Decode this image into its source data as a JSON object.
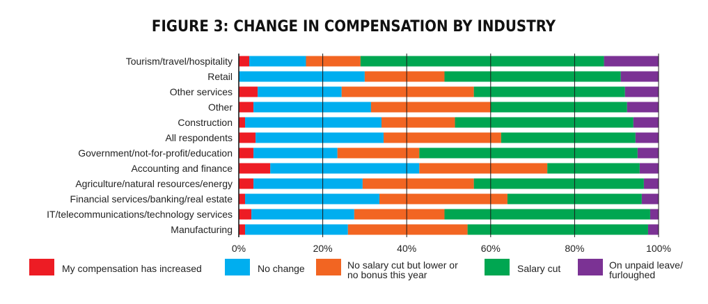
{
  "chart_data": {
    "type": "bar",
    "orientation": "horizontal",
    "stacked": true,
    "title": "FIGURE 3: CHANGE IN COMPENSATION BY INDUSTRY",
    "xlim": [
      0,
      100
    ],
    "x_ticks": [
      "0%",
      "20%",
      "40%",
      "60%",
      "80%",
      "100%"
    ],
    "grid": "vertical",
    "legend_position": "bottom",
    "categories": [
      "Tourism/travel/hospitality",
      "Retail",
      "Other services",
      "Other",
      "Construction",
      "All respondents",
      "Government/not-for-profit/education",
      "Accounting and finance",
      "Agriculture/natural resources/energy",
      "Financial services/banking/real estate",
      "IT/telecommunications/technology services",
      "Manufacturing"
    ],
    "series": [
      {
        "name": "My compensation has increased",
        "color": "#ed1c24",
        "values": [
          2.5,
          0,
          4.5,
          3.5,
          1.5,
          4,
          3.5,
          7.5,
          3.5,
          1.5,
          3,
          1.5
        ]
      },
      {
        "name": "No change",
        "color": "#00aeef",
        "values": [
          13.5,
          30,
          20,
          28,
          32.5,
          30.5,
          20,
          35.5,
          26,
          32,
          24.5,
          24.5
        ]
      },
      {
        "name": "No salary cut but lower or no bonus this year",
        "color": "#f26522",
        "values": [
          13,
          19,
          31.5,
          28.5,
          17.5,
          28,
          19.5,
          30.5,
          26.5,
          30.5,
          21.5,
          28.5
        ]
      },
      {
        "name": "Salary cut",
        "color": "#00a651",
        "values": [
          58,
          42,
          36,
          32.5,
          42.5,
          32,
          52,
          22,
          40.5,
          32,
          49,
          43
        ]
      },
      {
        "name": "On unpaid leave/ furloughed",
        "color": "#7b3294",
        "values": [
          13,
          9,
          8,
          7.5,
          6,
          5.5,
          5,
          4.5,
          3.5,
          4,
          2,
          2.5
        ]
      }
    ]
  },
  "legend": [
    {
      "lines": [
        "My compensation has increased"
      ]
    },
    {
      "lines": [
        "No change"
      ]
    },
    {
      "lines": [
        "No salary cut but lower or",
        "no bonus this year"
      ]
    },
    {
      "lines": [
        "Salary cut"
      ]
    },
    {
      "lines": [
        "On unpaid leave/",
        "furloughed"
      ]
    }
  ]
}
